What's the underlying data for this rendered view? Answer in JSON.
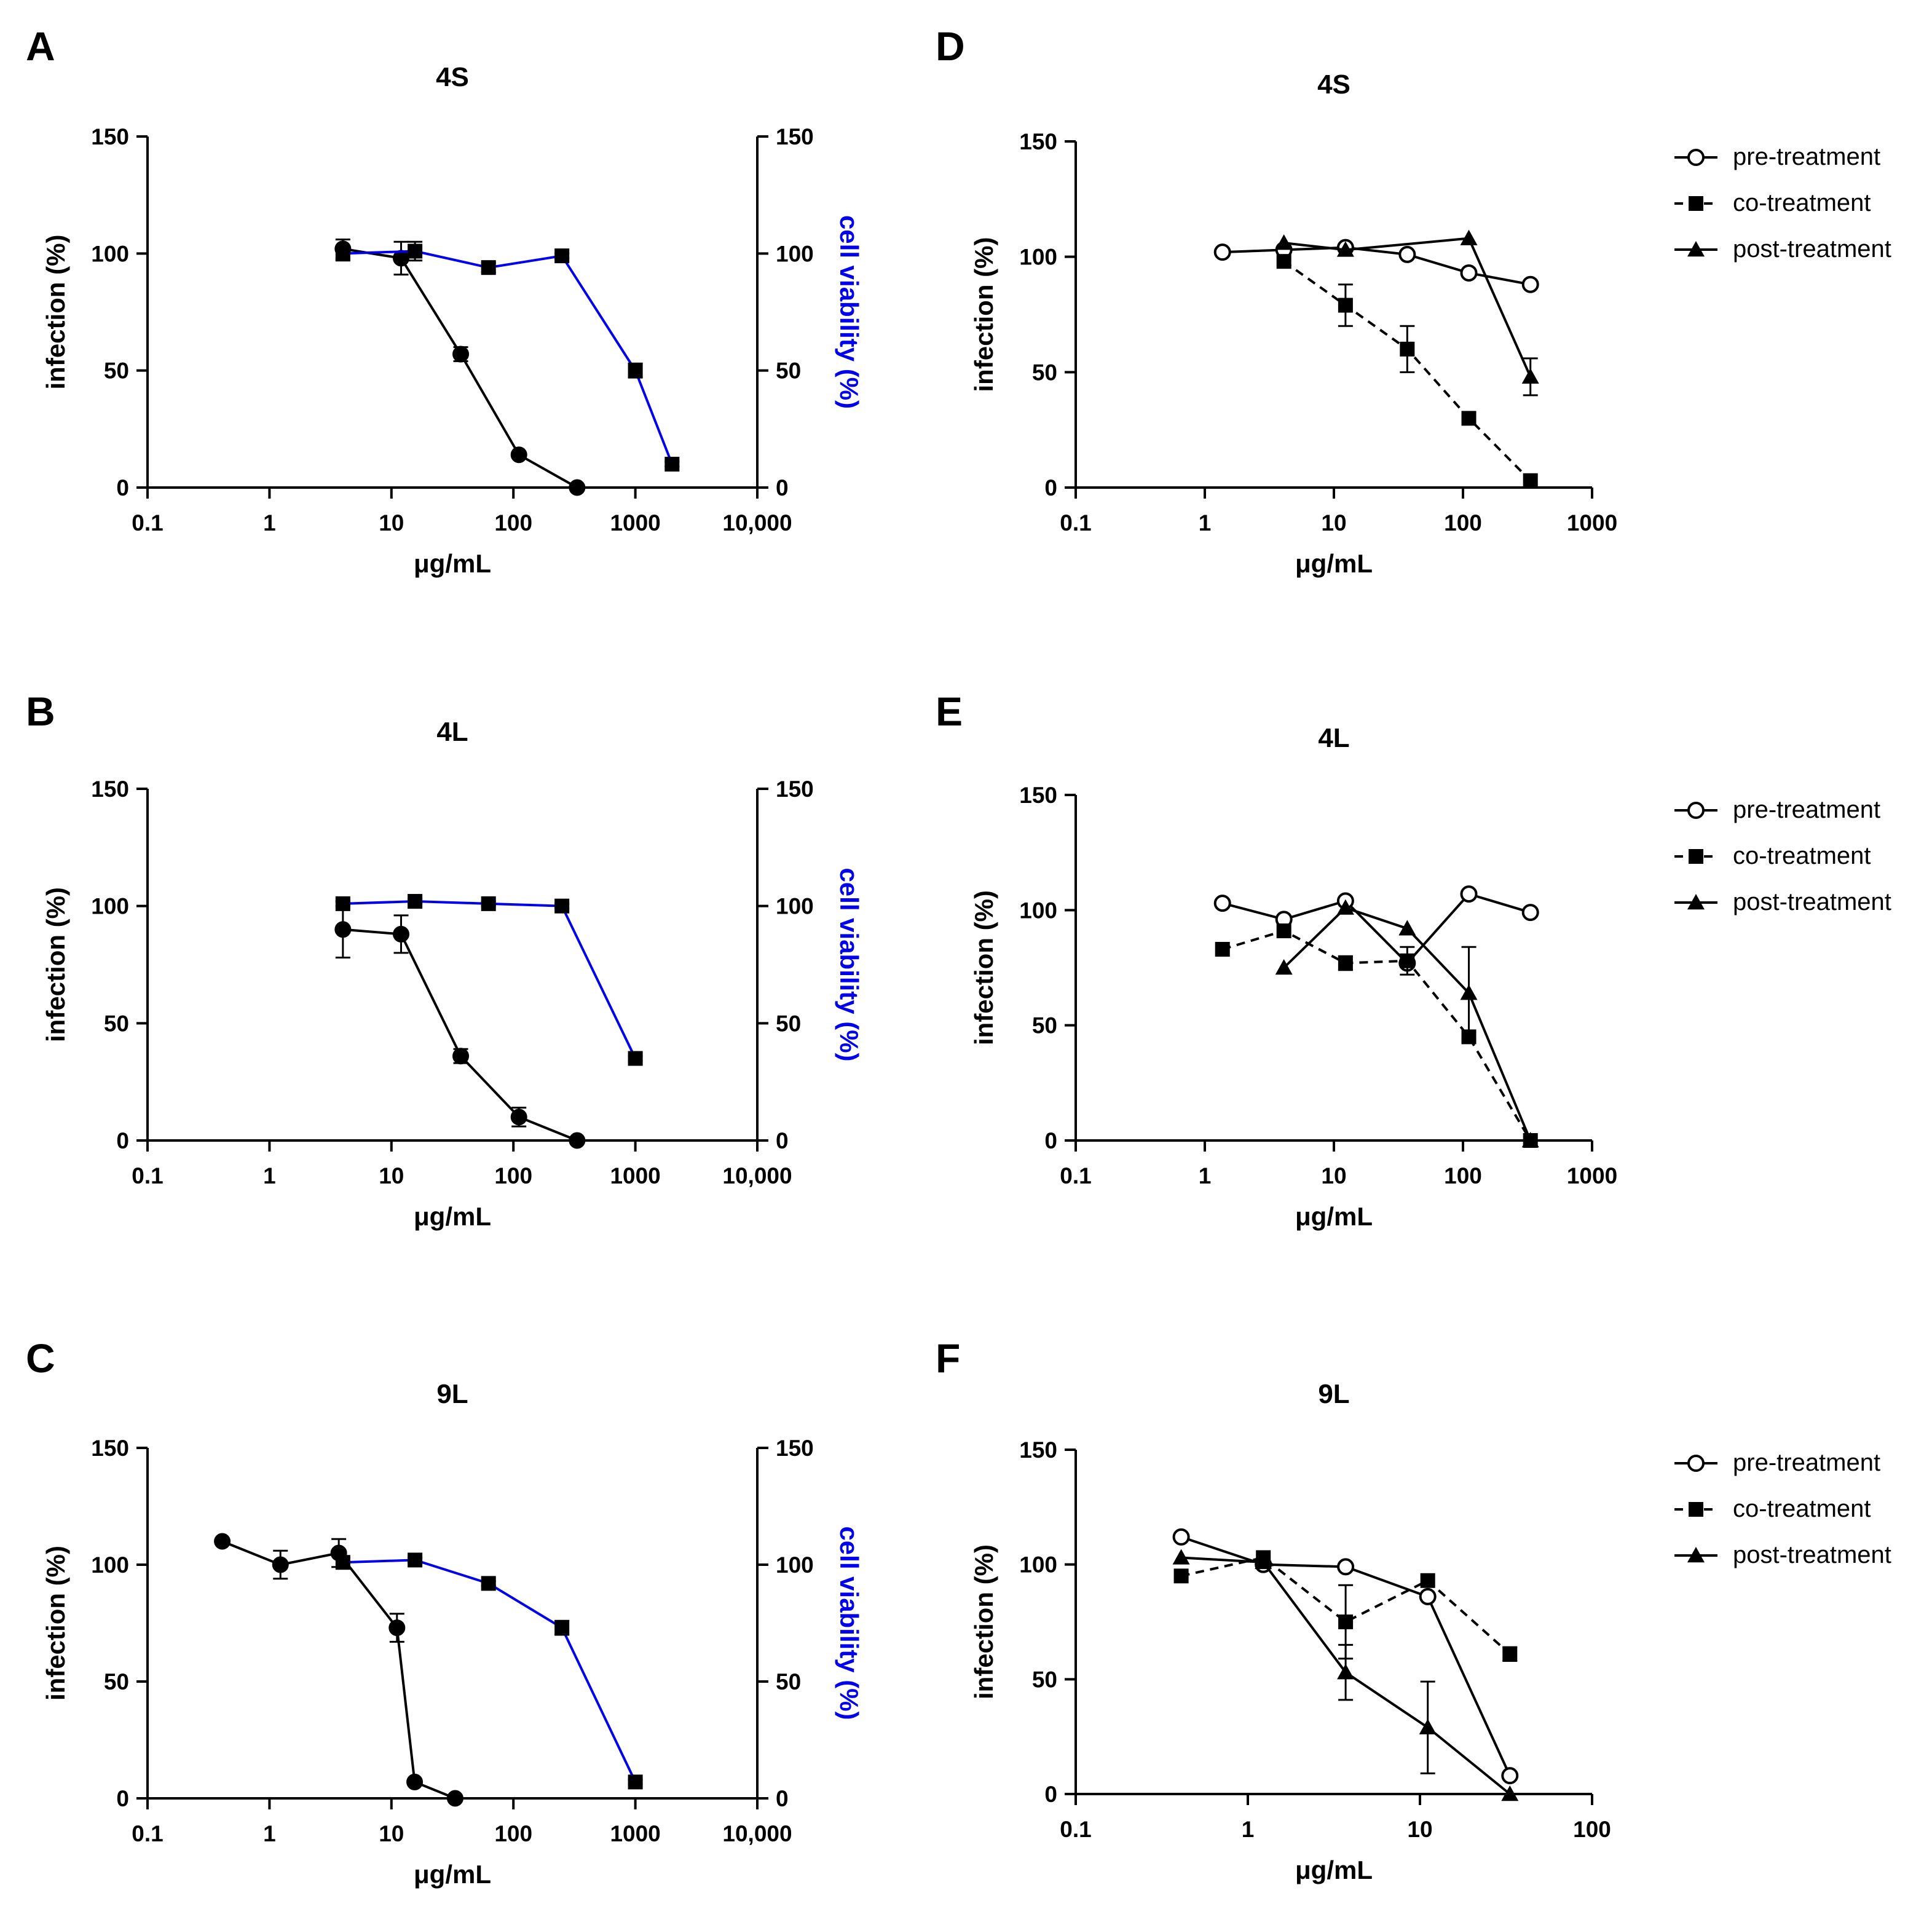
{
  "colors": {
    "black": "#000000",
    "blue": "#0000ee"
  },
  "chart_data": [
    {
      "panel": "A",
      "title": "4S",
      "type": "line",
      "xscale": "log",
      "xlim": [
        0.1,
        10000
      ],
      "xticks": [
        0.1,
        1,
        10,
        100,
        1000,
        10000
      ],
      "xtick_labels": [
        "0.1",
        "1",
        "10",
        "100",
        "1000",
        "10,000"
      ],
      "xlabel": "μg/mL",
      "ylabel": "infection (%)",
      "ylim": [
        0,
        150
      ],
      "yticks": [
        0,
        50,
        100,
        150
      ],
      "ytick_labels": [
        "0",
        "50",
        "100",
        "150"
      ],
      "y2label": "cell viability (%)",
      "y2lim": [
        0,
        150
      ],
      "y2ticks": [
        0,
        50,
        100,
        150
      ],
      "y2tick_labels": [
        "0",
        "50",
        "100",
        "150"
      ],
      "series": [
        {
          "name": "infection",
          "axis": "left",
          "color": "black",
          "marker": "circle",
          "dash": "solid",
          "x": [
            4,
            12,
            37,
            111,
            333
          ],
          "y": [
            102,
            98,
            57,
            14,
            0
          ],
          "err": [
            4,
            7,
            3,
            1,
            0
          ]
        },
        {
          "name": "cell viability",
          "axis": "right",
          "color": "blue",
          "marker": "square",
          "dash": "solid",
          "x": [
            4,
            15.6,
            62.5,
            250,
            1000,
            2000
          ],
          "y": [
            100,
            101,
            94,
            99,
            50,
            10
          ],
          "err": [
            3,
            4,
            2,
            1,
            3,
            1
          ]
        }
      ]
    },
    {
      "panel": "B",
      "title": "4L",
      "type": "line",
      "xscale": "log",
      "xlim": [
        0.1,
        10000
      ],
      "xticks": [
        0.1,
        1,
        10,
        100,
        1000,
        10000
      ],
      "xtick_labels": [
        "0.1",
        "1",
        "10",
        "100",
        "1000",
        "10,000"
      ],
      "xlabel": "μg/mL",
      "ylabel": "infection (%)",
      "ylim": [
        0,
        150
      ],
      "yticks": [
        0,
        50,
        100,
        150
      ],
      "ytick_labels": [
        "0",
        "50",
        "100",
        "150"
      ],
      "y2label": "cell viability (%)",
      "y2lim": [
        0,
        150
      ],
      "y2ticks": [
        0,
        50,
        100,
        150
      ],
      "y2tick_labels": [
        "0",
        "50",
        "100",
        "150"
      ],
      "series": [
        {
          "name": "infection",
          "axis": "left",
          "color": "black",
          "marker": "circle",
          "dash": "solid",
          "x": [
            4,
            12,
            37,
            111,
            333
          ],
          "y": [
            90,
            88,
            36,
            10,
            0
          ],
          "err": [
            12,
            8,
            3,
            4,
            0
          ]
        },
        {
          "name": "cell viability",
          "axis": "right",
          "color": "blue",
          "marker": "square",
          "dash": "solid",
          "x": [
            4,
            15.6,
            62.5,
            250,
            1000
          ],
          "y": [
            101,
            102,
            101,
            100,
            35
          ],
          "err": [
            1,
            1,
            1,
            1,
            1
          ]
        }
      ]
    },
    {
      "panel": "C",
      "title": "9L",
      "type": "line",
      "xscale": "log",
      "xlim": [
        0.1,
        10000
      ],
      "xticks": [
        0.1,
        1,
        10,
        100,
        1000,
        10000
      ],
      "xtick_labels": [
        "0.1",
        "1",
        "10",
        "100",
        "1000",
        "10,000"
      ],
      "xlabel": "μg/mL",
      "ylabel": "infection (%)",
      "ylim": [
        0,
        150
      ],
      "yticks": [
        0,
        50,
        100,
        150
      ],
      "ytick_labels": [
        "0",
        "50",
        "100",
        "150"
      ],
      "y2label": "cell viability (%)",
      "y2lim": [
        0,
        150
      ],
      "y2ticks": [
        0,
        50,
        100,
        150
      ],
      "y2tick_labels": [
        "0",
        "50",
        "100",
        "150"
      ],
      "series": [
        {
          "name": "infection",
          "axis": "left",
          "color": "black",
          "marker": "circle",
          "dash": "solid",
          "x": [
            0.41,
            1.23,
            3.7,
            11.1,
            15.5,
            33.3
          ],
          "y": [
            110,
            100,
            105,
            73,
            7,
            0
          ],
          "err": [
            0,
            6,
            6,
            6,
            0,
            0
          ]
        },
        {
          "name": "cell viability",
          "axis": "right",
          "color": "blue",
          "marker": "square",
          "dash": "solid",
          "x": [
            4,
            15.6,
            62.5,
            250,
            1000
          ],
          "y": [
            101,
            102,
            92,
            73,
            7
          ],
          "err": [
            2,
            1,
            1,
            3,
            1
          ]
        }
      ]
    },
    {
      "panel": "D",
      "title": "4S",
      "type": "line",
      "xscale": "log",
      "xlim": [
        0.1,
        1000
      ],
      "xticks": [
        0.1,
        1,
        10,
        100,
        1000
      ],
      "xtick_labels": [
        "0.1",
        "1",
        "10",
        "100",
        "1000"
      ],
      "xlabel": "μg/mL",
      "ylabel": "infection (%)",
      "ylim": [
        0,
        150
      ],
      "yticks": [
        0,
        50,
        100,
        150
      ],
      "ytick_labels": [
        "0",
        "50",
        "100",
        "150"
      ],
      "series": [
        {
          "name": "pre-treatment",
          "color": "black",
          "marker": "open-circle",
          "dash": "solid",
          "x": [
            1.37,
            4.1,
            12.3,
            37,
            111,
            333
          ],
          "y": [
            102,
            103,
            104,
            101,
            93,
            88
          ],
          "err": [
            0,
            0,
            0,
            0,
            0,
            0
          ]
        },
        {
          "name": "co-treatment",
          "color": "black",
          "marker": "square",
          "dash": "dashed",
          "x": [
            4.1,
            12.3,
            37,
            111,
            333
          ],
          "y": [
            98,
            79,
            60,
            30,
            3
          ],
          "err": [
            0,
            9,
            10,
            0,
            0
          ]
        },
        {
          "name": "post-treatment",
          "color": "black",
          "marker": "triangle",
          "dash": "solid",
          "x": [
            4.1,
            12.3,
            111,
            333
          ],
          "y": [
            106,
            103,
            108,
            48
          ],
          "err": [
            0,
            0,
            0,
            8
          ]
        }
      ],
      "legend": [
        "pre-treatment",
        "co-treatment",
        "post-treatment"
      ]
    },
    {
      "panel": "E",
      "title": "4L",
      "type": "line",
      "xscale": "log",
      "xlim": [
        0.1,
        1000
      ],
      "xticks": [
        0.1,
        1,
        10,
        100,
        1000
      ],
      "xtick_labels": [
        "0.1",
        "1",
        "10",
        "100",
        "1000"
      ],
      "xlabel": "μg/mL",
      "ylabel": "infection (%)",
      "ylim": [
        0,
        150
      ],
      "yticks": [
        0,
        50,
        100,
        150
      ],
      "ytick_labels": [
        "0",
        "50",
        "100",
        "150"
      ],
      "series": [
        {
          "name": "pre-treatment",
          "color": "black",
          "marker": "open-circle",
          "dash": "solid",
          "x": [
            1.37,
            4.1,
            12.3,
            37,
            111,
            333
          ],
          "y": [
            103,
            96,
            104,
            77,
            107,
            99
          ],
          "err": [
            0,
            0,
            0,
            0,
            0,
            0
          ]
        },
        {
          "name": "co-treatment",
          "color": "black",
          "marker": "square",
          "dash": "dashed",
          "x": [
            1.37,
            4.1,
            12.3,
            37,
            111,
            333
          ],
          "y": [
            83,
            91,
            77,
            78,
            45,
            0
          ],
          "err": [
            0,
            0,
            3,
            6,
            0,
            0
          ]
        },
        {
          "name": "post-treatment",
          "color": "black",
          "marker": "triangle",
          "dash": "solid",
          "x": [
            4.1,
            12.3,
            37,
            111,
            333
          ],
          "y": [
            75,
            101,
            92,
            64,
            0
          ],
          "err": [
            0,
            0,
            0,
            20,
            0
          ]
        }
      ],
      "legend": [
        "pre-treatment",
        "co-treatment",
        "post-treatment"
      ]
    },
    {
      "panel": "F",
      "title": "9L",
      "type": "line",
      "xscale": "log",
      "xlim": [
        0.1,
        100
      ],
      "xticks": [
        0.1,
        1,
        10,
        100
      ],
      "xtick_labels": [
        "0.1",
        "1",
        "10",
        "100"
      ],
      "xlabel": "μg/mL",
      "ylabel": "infection (%)",
      "ylim": [
        0,
        150
      ],
      "yticks": [
        0,
        50,
        100,
        150
      ],
      "ytick_labels": [
        "0",
        "50",
        "100",
        "150"
      ],
      "series": [
        {
          "name": "pre-treatment",
          "color": "black",
          "marker": "open-circle",
          "dash": "solid",
          "x": [
            0.41,
            1.23,
            3.7,
            11.1,
            33.3
          ],
          "y": [
            112,
            100,
            99,
            86,
            8
          ],
          "err": [
            0,
            0,
            0,
            0,
            0
          ]
        },
        {
          "name": "co-treatment",
          "color": "black",
          "marker": "square",
          "dash": "dashed",
          "x": [
            0.41,
            1.23,
            3.7,
            11.1,
            33.3
          ],
          "y": [
            95,
            103,
            75,
            93,
            61
          ],
          "err": [
            0,
            0,
            16,
            0,
            3
          ]
        },
        {
          "name": "post-treatment",
          "color": "black",
          "marker": "triangle",
          "dash": "solid",
          "x": [
            0.41,
            1.23,
            3.7,
            11.1,
            33.3
          ],
          "y": [
            103,
            101,
            53,
            29,
            0
          ],
          "err": [
            0,
            0,
            12,
            20,
            0
          ]
        }
      ],
      "legend": [
        "pre-treatment",
        "co-treatment",
        "post-treatment"
      ]
    }
  ]
}
